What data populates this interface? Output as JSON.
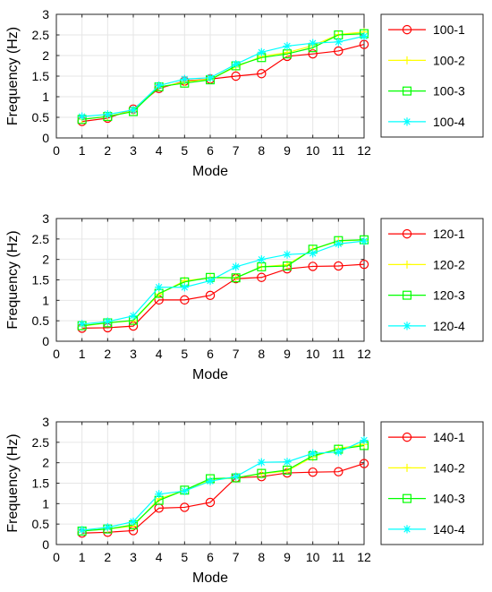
{
  "chart_data": [
    {
      "type": "line",
      "xlabel": "Mode",
      "ylabel": "Frequency (Hz)",
      "xlim": [
        0,
        12
      ],
      "ylim": [
        0,
        3
      ],
      "xticks": [
        "0",
        "1",
        "2",
        "3",
        "4",
        "5",
        "6",
        "7",
        "8",
        "9",
        "10",
        "11",
        "12"
      ],
      "yticks": [
        "0",
        "0.5",
        "1",
        "1.5",
        "2",
        "2.5",
        "3"
      ],
      "grid": true,
      "legend_position": "right",
      "x": [
        1,
        2,
        3,
        4,
        5,
        6,
        7,
        8,
        9,
        10,
        11,
        12
      ],
      "series": [
        {
          "name": "100-1",
          "color": "#ff0000",
          "marker": "circle",
          "values": [
            0.4,
            0.48,
            0.7,
            1.2,
            1.38,
            1.43,
            1.5,
            1.56,
            1.98,
            2.04,
            2.11,
            2.27
          ]
        },
        {
          "name": "100-2",
          "color": "#ffff00",
          "marker": "plus",
          "values": [
            0.45,
            0.52,
            0.66,
            1.23,
            1.36,
            1.43,
            1.72,
            1.98,
            2.07,
            2.24,
            2.51,
            2.57
          ]
        },
        {
          "name": "100-3",
          "color": "#00ff00",
          "marker": "square",
          "values": [
            0.45,
            0.52,
            0.64,
            1.24,
            1.33,
            1.41,
            1.75,
            1.95,
            2.04,
            2.19,
            2.5,
            2.53
          ]
        },
        {
          "name": "100-4",
          "color": "#00ffff",
          "marker": "star",
          "values": [
            0.52,
            0.57,
            0.68,
            1.27,
            1.43,
            1.46,
            1.79,
            2.08,
            2.23,
            2.3,
            2.33,
            2.47
          ]
        }
      ]
    },
    {
      "type": "line",
      "xlabel": "Mode",
      "ylabel": "Frequency (Hz)",
      "xlim": [
        0,
        12
      ],
      "ylim": [
        0,
        3
      ],
      "xticks": [
        "0",
        "1",
        "2",
        "3",
        "4",
        "5",
        "6",
        "7",
        "8",
        "9",
        "10",
        "11",
        "12"
      ],
      "yticks": [
        "0",
        "0.5",
        "1",
        "1.5",
        "2",
        "2.5",
        "3"
      ],
      "grid": true,
      "legend_position": "right",
      "x": [
        1,
        2,
        3,
        4,
        5,
        6,
        7,
        8,
        9,
        10,
        11,
        12
      ],
      "series": [
        {
          "name": "120-1",
          "color": "#ff0000",
          "marker": "circle",
          "values": [
            0.32,
            0.33,
            0.37,
            1.01,
            1.01,
            1.12,
            1.53,
            1.56,
            1.77,
            1.83,
            1.84,
            1.88
          ]
        },
        {
          "name": "120-2",
          "color": "#ffff00",
          "marker": "plus",
          "values": [
            0.37,
            0.45,
            0.5,
            1.15,
            1.48,
            1.55,
            1.55,
            1.82,
            1.87,
            2.25,
            2.45,
            2.48
          ]
        },
        {
          "name": "120-3",
          "color": "#00ff00",
          "marker": "square",
          "values": [
            0.38,
            0.45,
            0.51,
            1.17,
            1.45,
            1.56,
            1.55,
            1.82,
            1.84,
            2.25,
            2.46,
            2.48
          ]
        },
        {
          "name": "120-4",
          "color": "#00ffff",
          "marker": "star",
          "values": [
            0.42,
            0.48,
            0.62,
            1.32,
            1.32,
            1.48,
            1.82,
            2.0,
            2.12,
            2.15,
            2.38,
            2.45
          ]
        }
      ]
    },
    {
      "type": "line",
      "xlabel": "Mode",
      "ylabel": "Frequency (Hz)",
      "xlim": [
        0,
        12
      ],
      "ylim": [
        0,
        3
      ],
      "xticks": [
        "0",
        "1",
        "2",
        "3",
        "4",
        "5",
        "6",
        "7",
        "8",
        "9",
        "10",
        "11",
        "12"
      ],
      "yticks": [
        "0",
        "0.5",
        "1",
        "1.5",
        "2",
        "2.5",
        "3"
      ],
      "grid": true,
      "legend_position": "right",
      "x": [
        1,
        2,
        3,
        4,
        5,
        6,
        7,
        8,
        9,
        10,
        11,
        12
      ],
      "series": [
        {
          "name": "140-1",
          "color": "#ff0000",
          "marker": "circle",
          "values": [
            0.28,
            0.3,
            0.34,
            0.89,
            0.91,
            1.03,
            1.63,
            1.66,
            1.75,
            1.77,
            1.78,
            1.98
          ]
        },
        {
          "name": "140-2",
          "color": "#ffff00",
          "marker": "plus",
          "values": [
            0.34,
            0.38,
            0.45,
            1.12,
            1.32,
            1.58,
            1.63,
            1.73,
            1.8,
            2.14,
            2.35,
            2.45
          ]
        },
        {
          "name": "140-3",
          "color": "#00ff00",
          "marker": "square",
          "values": [
            0.33,
            0.38,
            0.48,
            1.08,
            1.33,
            1.61,
            1.63,
            1.74,
            1.82,
            2.17,
            2.33,
            2.42
          ]
        },
        {
          "name": "140-4",
          "color": "#00ffff",
          "marker": "star",
          "values": [
            0.35,
            0.42,
            0.56,
            1.23,
            1.31,
            1.55,
            1.66,
            2.01,
            2.02,
            2.23,
            2.26,
            2.55
          ]
        }
      ]
    }
  ]
}
